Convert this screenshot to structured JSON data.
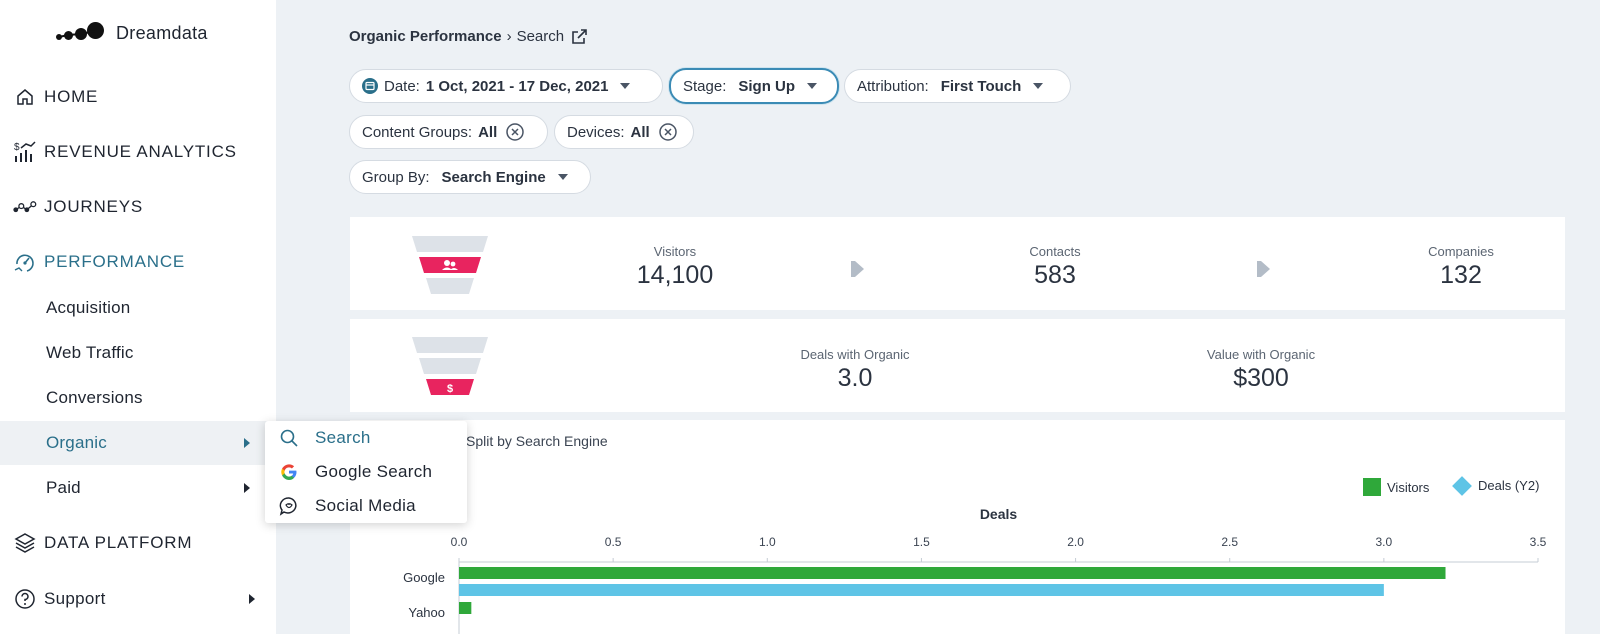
{
  "app": {
    "name": "Dreamdata"
  },
  "sidebar": {
    "items": [
      {
        "label": "HOME",
        "icon": "home-icon"
      },
      {
        "label": "REVENUE ANALYTICS",
        "icon": "revenue-analytics-icon"
      },
      {
        "label": "JOURNEYS",
        "icon": "journeys-icon"
      },
      {
        "label": "PERFORMANCE",
        "icon": "performance-icon",
        "active": true
      },
      {
        "label": "DATA PLATFORM",
        "icon": "layers-icon"
      },
      {
        "label": "Support",
        "icon": "help-circle-icon"
      }
    ],
    "performance_sub": [
      {
        "label": "Acquisition"
      },
      {
        "label": "Web Traffic"
      },
      {
        "label": "Conversions"
      },
      {
        "label": "Organic",
        "hover": true
      },
      {
        "label": "Paid"
      }
    ]
  },
  "flyout": {
    "items": [
      {
        "label": "Search",
        "icon": "search-icon",
        "active": true
      },
      {
        "label": "Google Search",
        "icon": "google-icon"
      },
      {
        "label": "Social Media",
        "icon": "social-media-icon"
      }
    ]
  },
  "breadcrumb": {
    "root": "Organic Performance",
    "sep": "›",
    "current": "Search"
  },
  "filters": {
    "date": {
      "key": "Date:",
      "value": "1 Oct, 2021 - 17 Dec, 2021"
    },
    "stage": {
      "key": "Stage:",
      "value": "Sign Up"
    },
    "attribution": {
      "key": "Attribution:",
      "value": "First Touch"
    },
    "content_groups": {
      "key": "Content Groups:",
      "value": "All"
    },
    "devices": {
      "key": "Devices:",
      "value": "All"
    },
    "group_by": {
      "key": "Group By:",
      "value": "Search Engine"
    }
  },
  "funnel": {
    "visitors": {
      "label": "Visitors",
      "value": "14,100"
    },
    "contacts": {
      "label": "Contacts",
      "value": "583"
    },
    "companies": {
      "label": "Companies",
      "value": "132"
    }
  },
  "deals": {
    "deals_with_organic": {
      "label": "Deals with Organic",
      "value": "3.0"
    },
    "value_with_organic": {
      "label": "Value with Organic",
      "value": "$300"
    }
  },
  "chart_section": {
    "title": "Split by Search Engine"
  },
  "colors": {
    "accent": "#2a6f8a",
    "visitors": "#2fa83a",
    "deals": "#5ec4e6",
    "funnel_pink": "#e8245f"
  },
  "chart_data": {
    "type": "bar",
    "orientation": "horizontal",
    "title": "",
    "xlabel": "Deals",
    "xlim": [
      0,
      3.5
    ],
    "x_ticks": [
      "0.0",
      "0.5",
      "1.0",
      "1.5",
      "2.0",
      "2.5",
      "3.0",
      "3.5"
    ],
    "categories": [
      "Google",
      "Yahoo"
    ],
    "series": [
      {
        "name": "Visitors",
        "color": "#2fa83a",
        "values": [
          3.2,
          0.04
        ]
      },
      {
        "name": "Deals (Y2)",
        "color": "#5ec4e6",
        "values": [
          3.0,
          0
        ]
      }
    ],
    "legend": "top-right"
  }
}
